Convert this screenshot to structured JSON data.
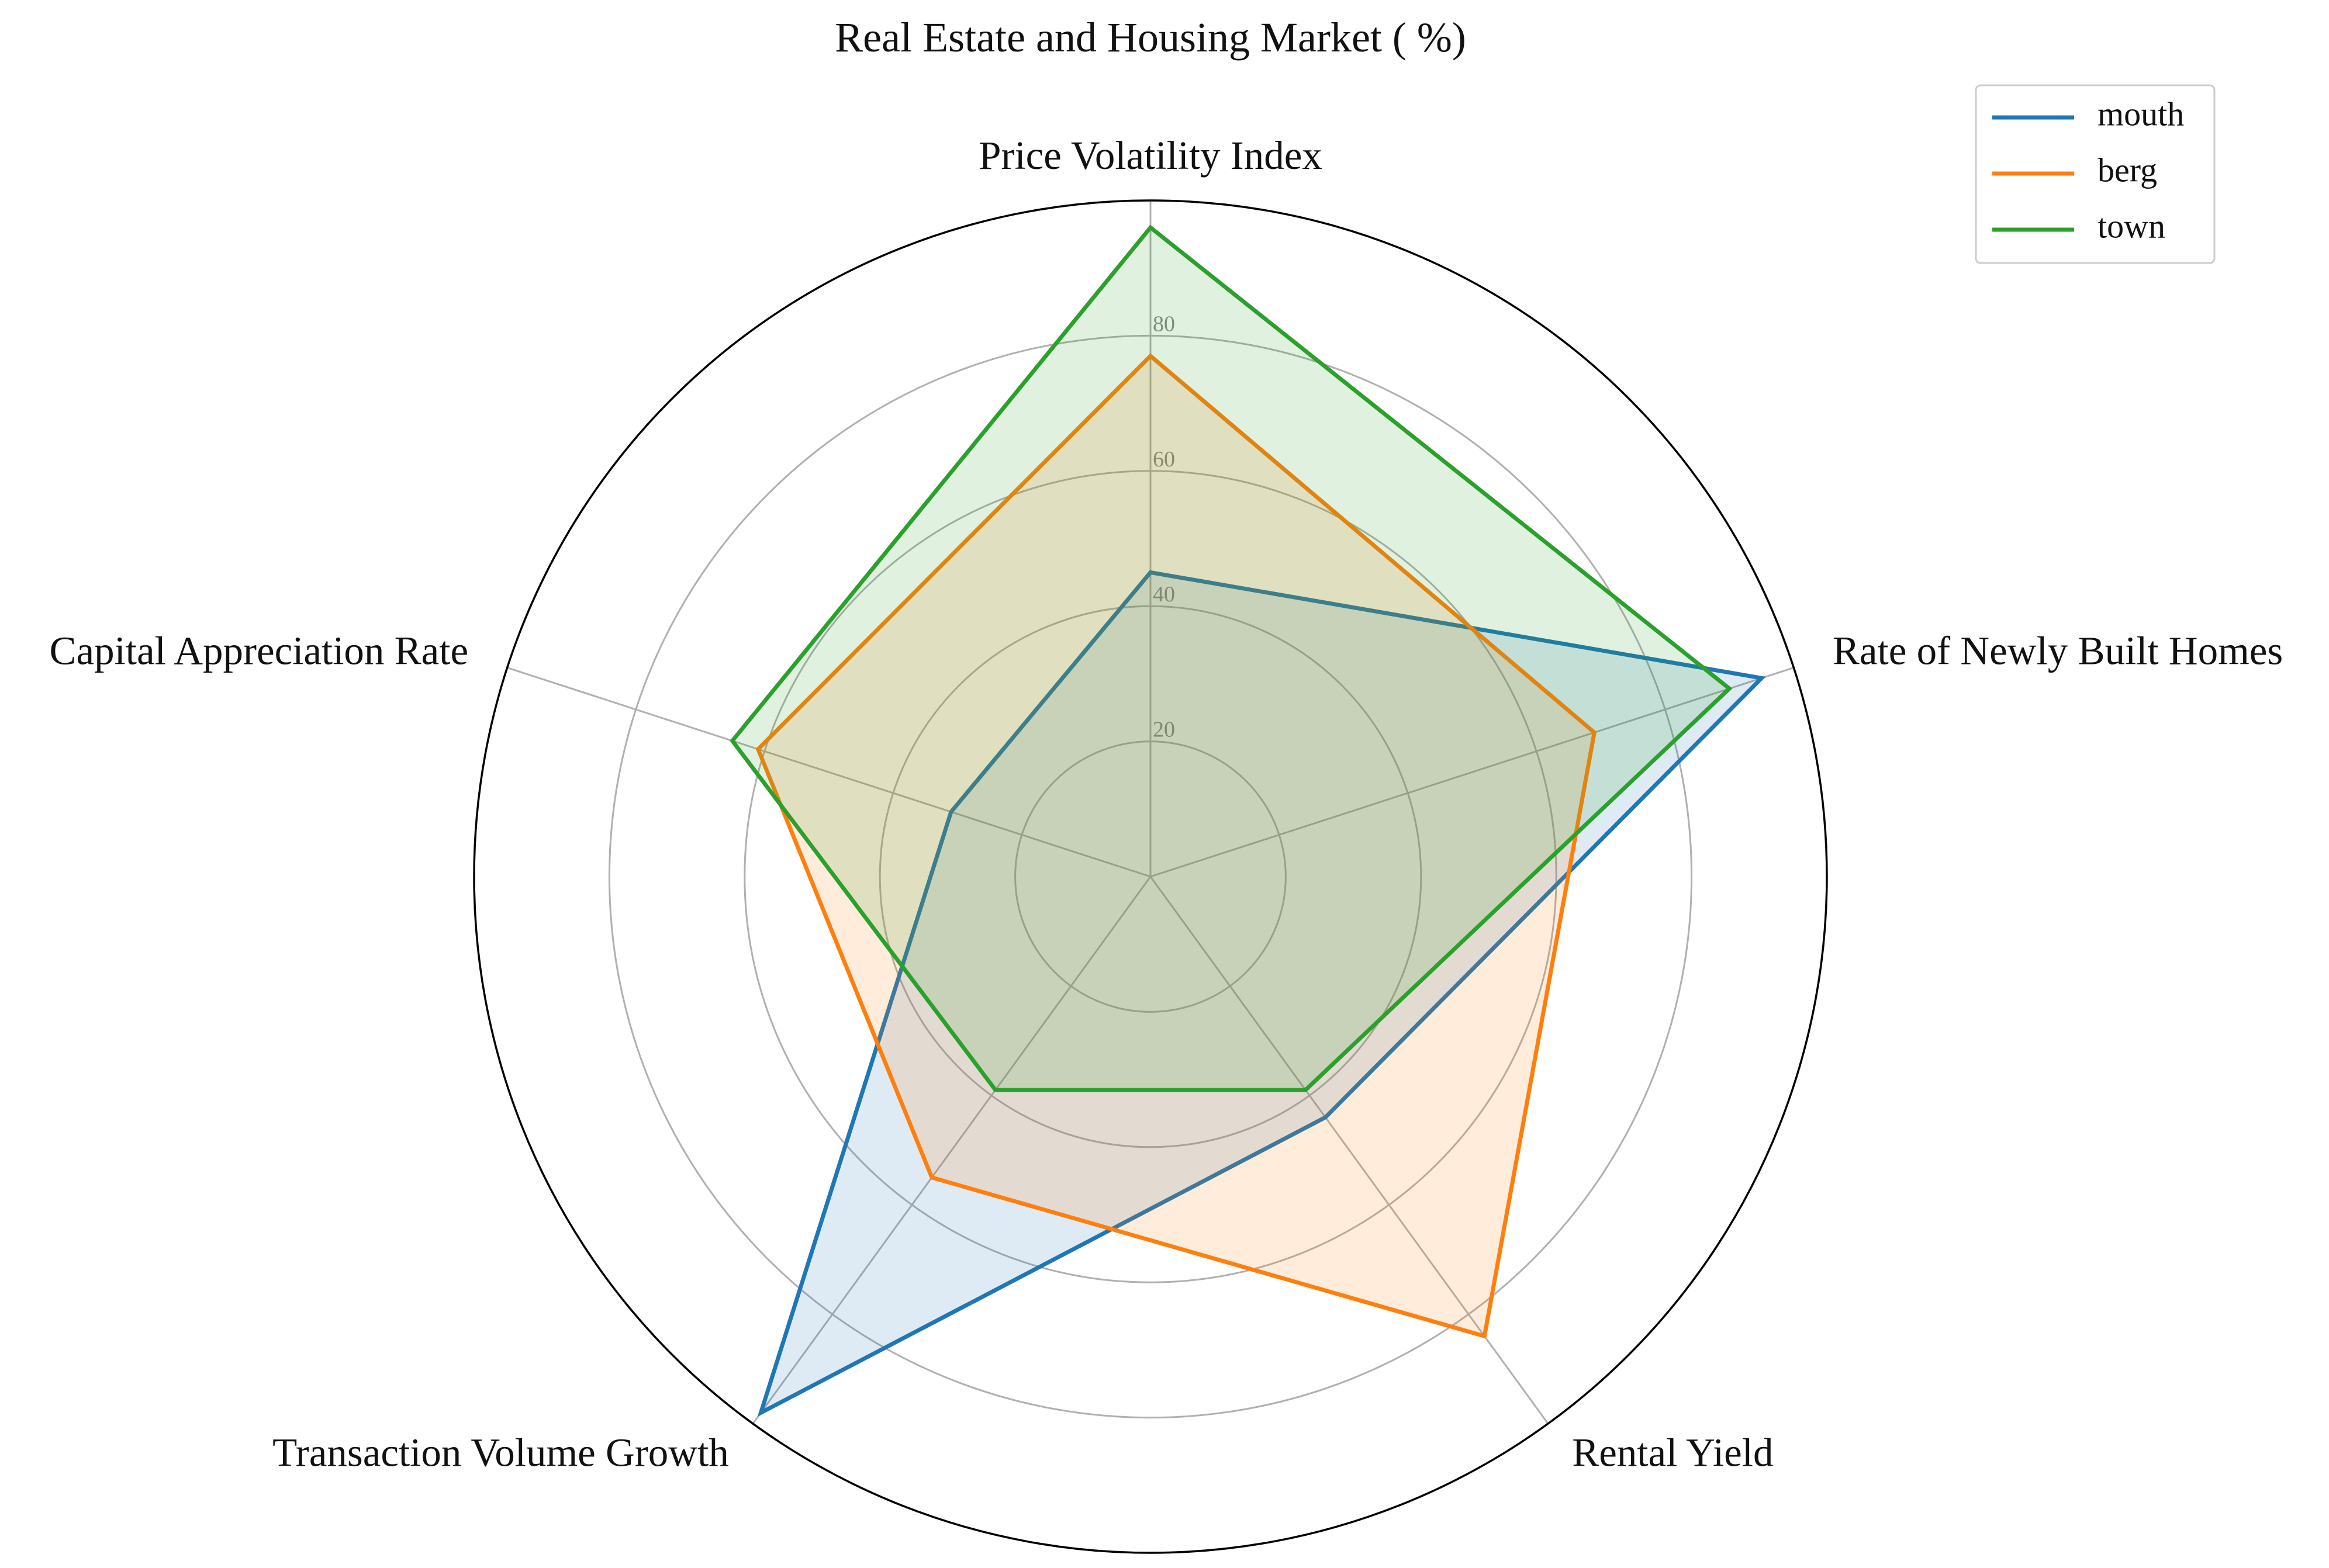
{
  "chart_data": {
    "type": "radar",
    "title": "Real Estate and Housing Market ( %)",
    "axes": [
      "Price Volatility Index",
      "Rate of Newly Built Homes",
      "Rental Yield",
      "Transaction Volume Growth",
      "Capital Appreciation Rate"
    ],
    "rlim": [
      0,
      100
    ],
    "r_ticks": [
      20,
      40,
      60,
      80
    ],
    "r_tick_labels": [
      "20",
      "40",
      "60",
      "80"
    ],
    "grid": true,
    "legend_position": "top-right",
    "series": [
      {
        "name": "mouth",
        "color": "#1f77b4",
        "values": [
          45,
          95,
          44,
          98,
          31
        ]
      },
      {
        "name": "berg",
        "color": "#ff7f0e",
        "values": [
          77,
          69,
          84,
          55,
          61
        ]
      },
      {
        "name": "town",
        "color": "#2ca02c",
        "values": [
          96,
          90,
          39,
          39,
          65
        ]
      }
    ]
  }
}
